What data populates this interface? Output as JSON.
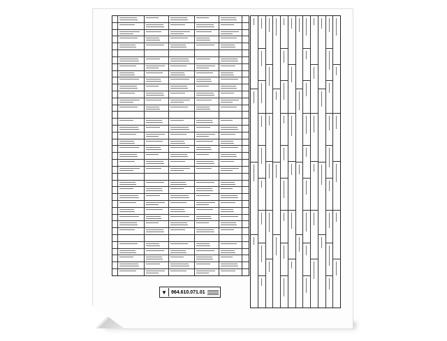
{
  "document": {
    "part_number": "964.610.071.01",
    "logo": "crest-logo"
  }
}
